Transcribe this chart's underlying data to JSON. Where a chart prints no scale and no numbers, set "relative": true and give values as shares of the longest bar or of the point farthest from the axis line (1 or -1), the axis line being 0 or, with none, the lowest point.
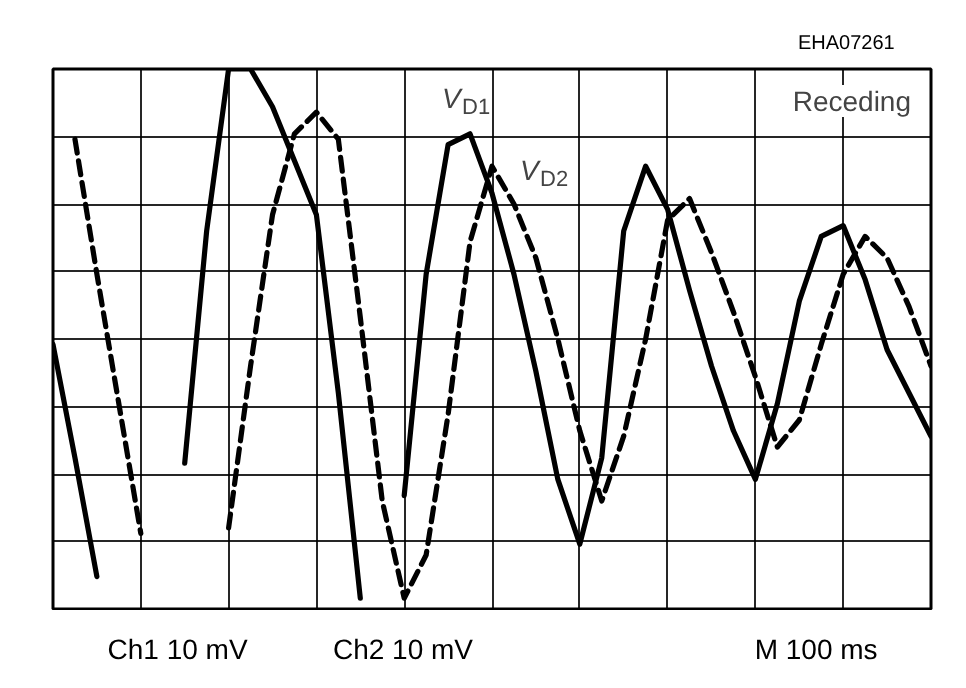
{
  "chart_data": {
    "type": "line",
    "title": "Receding",
    "relative": true,
    "grid": true,
    "tick_labels": false,
    "categories": [
      null,
      null,
      null,
      null,
      null,
      null,
      null,
      null,
      null,
      null,
      null,
      null,
      null,
      null,
      null,
      null,
      null,
      null,
      null,
      null,
      null,
      null,
      null,
      null,
      null,
      null,
      null,
      null,
      null,
      null,
      null,
      null,
      null,
      null,
      null,
      null,
      null,
      null,
      null,
      null,
      null
    ],
    "series": [
      {
        "name": "V$_{D1}$",
        "color": "#000000",
        "line_style": "solid",
        "values": [
          0.49,
          0.28,
          0.06,
          null,
          null,
          null,
          0.27,
          0.7,
          1.0,
          1.0,
          0.93,
          0.83,
          0.73,
          0.4,
          0.02,
          null,
          0.21,
          0.62,
          0.86,
          0.88,
          0.77,
          0.62,
          0.44,
          0.24,
          0.12,
          0.28,
          0.7,
          0.82,
          0.74,
          0.59,
          0.45,
          0.33,
          0.24,
          0.38,
          0.57,
          0.69,
          0.71,
          0.61,
          0.48,
          0.4,
          0.32
        ]
      },
      {
        "name": "V$_{D2}$",
        "color": "#000000",
        "line_style": "dashed",
        "values": [
          null,
          0.87,
          0.62,
          0.38,
          0.14,
          null,
          null,
          null,
          0.15,
          0.45,
          0.73,
          0.88,
          0.92,
          0.87,
          0.54,
          0.2,
          0.02,
          0.1,
          0.36,
          0.68,
          0.82,
          0.75,
          0.65,
          0.5,
          0.33,
          0.2,
          0.32,
          0.5,
          0.72,
          0.76,
          0.66,
          0.55,
          0.43,
          0.3,
          0.35,
          0.49,
          0.62,
          0.69,
          0.65,
          0.56,
          0.45
        ]
      }
    ],
    "annotations": [
      "EHA07261",
      "Ch1   10 mV",
      "Ch2   10 mV",
      "M   100 ms"
    ]
  }
}
